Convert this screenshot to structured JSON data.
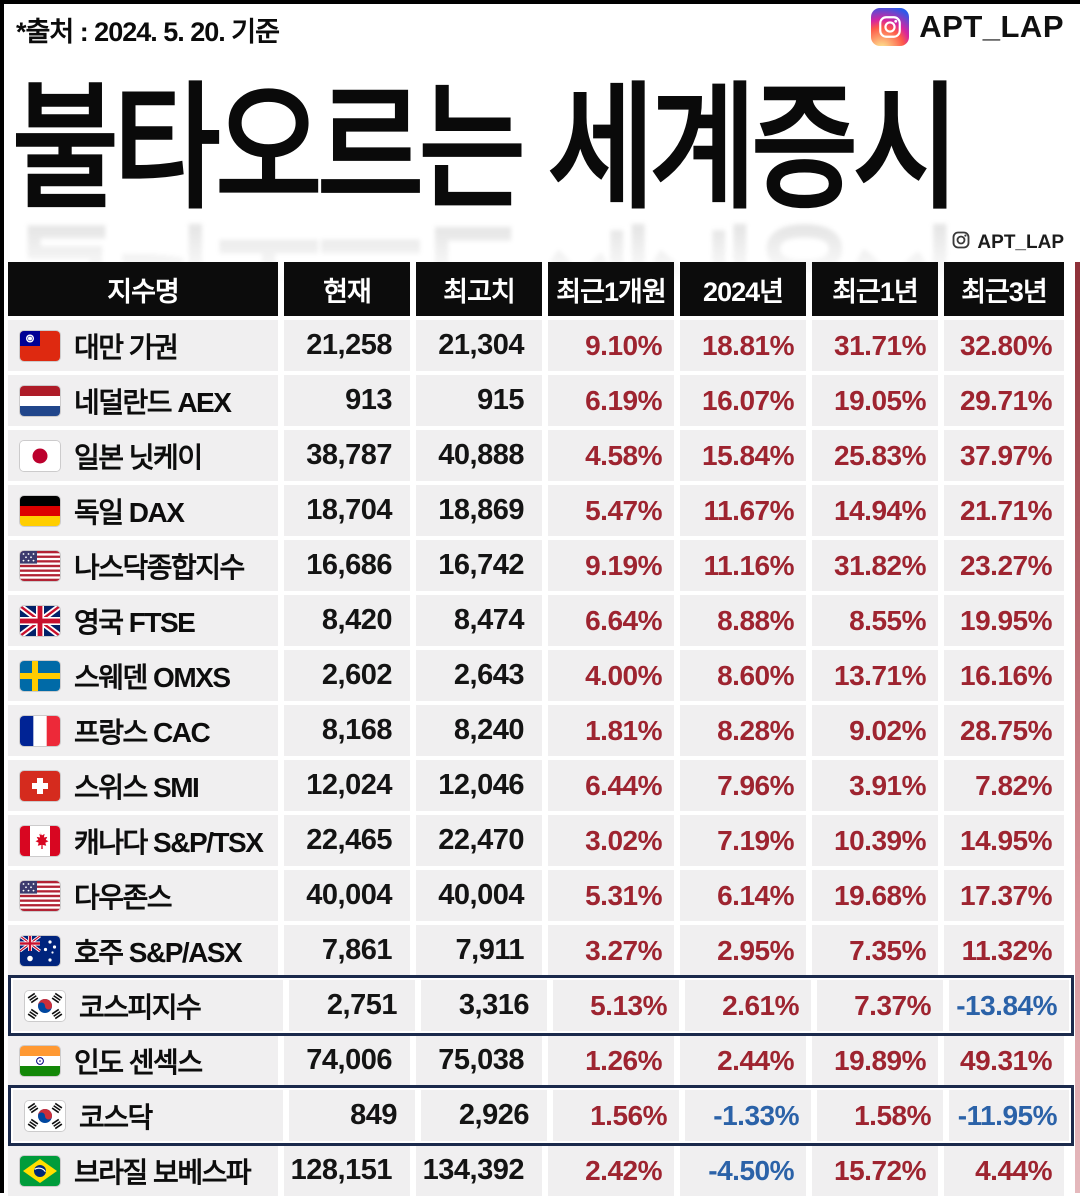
{
  "chart_data": {
    "type": "table",
    "title": "불타오르는 세계증시",
    "source_note": "*출처 : 2024. 5. 20. 기준",
    "instagram_handle": "APT_LAP",
    "columns": [
      "지수명",
      "현재",
      "최고치",
      "최근1개원",
      "2024년",
      "최근1년",
      "최근3년"
    ],
    "rows": [
      {
        "flag": "taiwan",
        "name": "대만 가권",
        "current": "21,258",
        "high": "21,304",
        "recent_1m": "9.10%",
        "year_2024": "18.81%",
        "recent_1y": "31.71%",
        "recent_3y": "32.80%",
        "highlight": false
      },
      {
        "flag": "netherlands",
        "name": "네덜란드 AEX",
        "current": "913",
        "high": "915",
        "recent_1m": "6.19%",
        "year_2024": "16.07%",
        "recent_1y": "19.05%",
        "recent_3y": "29.71%",
        "highlight": false
      },
      {
        "flag": "japan",
        "name": "일본 닛케이",
        "current": "38,787",
        "high": "40,888",
        "recent_1m": "4.58%",
        "year_2024": "15.84%",
        "recent_1y": "25.83%",
        "recent_3y": "37.97%",
        "highlight": false
      },
      {
        "flag": "germany",
        "name": "독일 DAX",
        "current": "18,704",
        "high": "18,869",
        "recent_1m": "5.47%",
        "year_2024": "11.67%",
        "recent_1y": "14.94%",
        "recent_3y": "21.71%",
        "highlight": false
      },
      {
        "flag": "usa",
        "name": "나스닥종합지수",
        "current": "16,686",
        "high": "16,742",
        "recent_1m": "9.19%",
        "year_2024": "11.16%",
        "recent_1y": "31.82%",
        "recent_3y": "23.27%",
        "highlight": false
      },
      {
        "flag": "uk",
        "name": "영국 FTSE",
        "current": "8,420",
        "high": "8,474",
        "recent_1m": "6.64%",
        "year_2024": "8.88%",
        "recent_1y": "8.55%",
        "recent_3y": "19.95%",
        "highlight": false
      },
      {
        "flag": "sweden",
        "name": "스웨덴 OMXS",
        "current": "2,602",
        "high": "2,643",
        "recent_1m": "4.00%",
        "year_2024": "8.60%",
        "recent_1y": "13.71%",
        "recent_3y": "16.16%",
        "highlight": false
      },
      {
        "flag": "france",
        "name": "프랑스 CAC",
        "current": "8,168",
        "high": "8,240",
        "recent_1m": "1.81%",
        "year_2024": "8.28%",
        "recent_1y": "9.02%",
        "recent_3y": "28.75%",
        "highlight": false
      },
      {
        "flag": "switzerland",
        "name": "스위스 SMI",
        "current": "12,024",
        "high": "12,046",
        "recent_1m": "6.44%",
        "year_2024": "7.96%",
        "recent_1y": "3.91%",
        "recent_3y": "7.82%",
        "highlight": false
      },
      {
        "flag": "canada",
        "name": "캐나다 S&P/TSX",
        "current": "22,465",
        "high": "22,470",
        "recent_1m": "3.02%",
        "year_2024": "7.19%",
        "recent_1y": "10.39%",
        "recent_3y": "14.95%",
        "highlight": false
      },
      {
        "flag": "usa",
        "name": "다우존스",
        "current": "40,004",
        "high": "40,004",
        "recent_1m": "5.31%",
        "year_2024": "6.14%",
        "recent_1y": "19.68%",
        "recent_3y": "17.37%",
        "highlight": false
      },
      {
        "flag": "australia",
        "name": "호주 S&P/ASX",
        "current": "7,861",
        "high": "7,911",
        "recent_1m": "3.27%",
        "year_2024": "2.95%",
        "recent_1y": "7.35%",
        "recent_3y": "11.32%",
        "highlight": false
      },
      {
        "flag": "southkorea",
        "name": "코스피지수",
        "current": "2,751",
        "high": "3,316",
        "recent_1m": "5.13%",
        "year_2024": "2.61%",
        "recent_1y": "7.37%",
        "recent_3y": "-13.84%",
        "highlight": true
      },
      {
        "flag": "india",
        "name": "인도 센섹스",
        "current": "74,006",
        "high": "75,038",
        "recent_1m": "1.26%",
        "year_2024": "2.44%",
        "recent_1y": "19.89%",
        "recent_3y": "49.31%",
        "highlight": false
      },
      {
        "flag": "southkorea",
        "name": "코스닥",
        "current": "849",
        "high": "2,926",
        "recent_1m": "1.56%",
        "year_2024": "-1.33%",
        "recent_1y": "1.58%",
        "recent_3y": "-11.95%",
        "highlight": true
      },
      {
        "flag": "brazil",
        "name": "브라질 보베스파",
        "current": "128,151",
        "high": "134,392",
        "recent_1m": "2.42%",
        "year_2024": "-4.50%",
        "recent_1y": "15.72%",
        "recent_3y": "4.44%",
        "highlight": false
      }
    ],
    "colors": {
      "positive_change": "#9e2430",
      "negative_change": "#2b62a8",
      "header_bg": "#0c0c0c",
      "row_bg": "#f0eff0",
      "highlight_border": "#1b2a4c"
    }
  }
}
